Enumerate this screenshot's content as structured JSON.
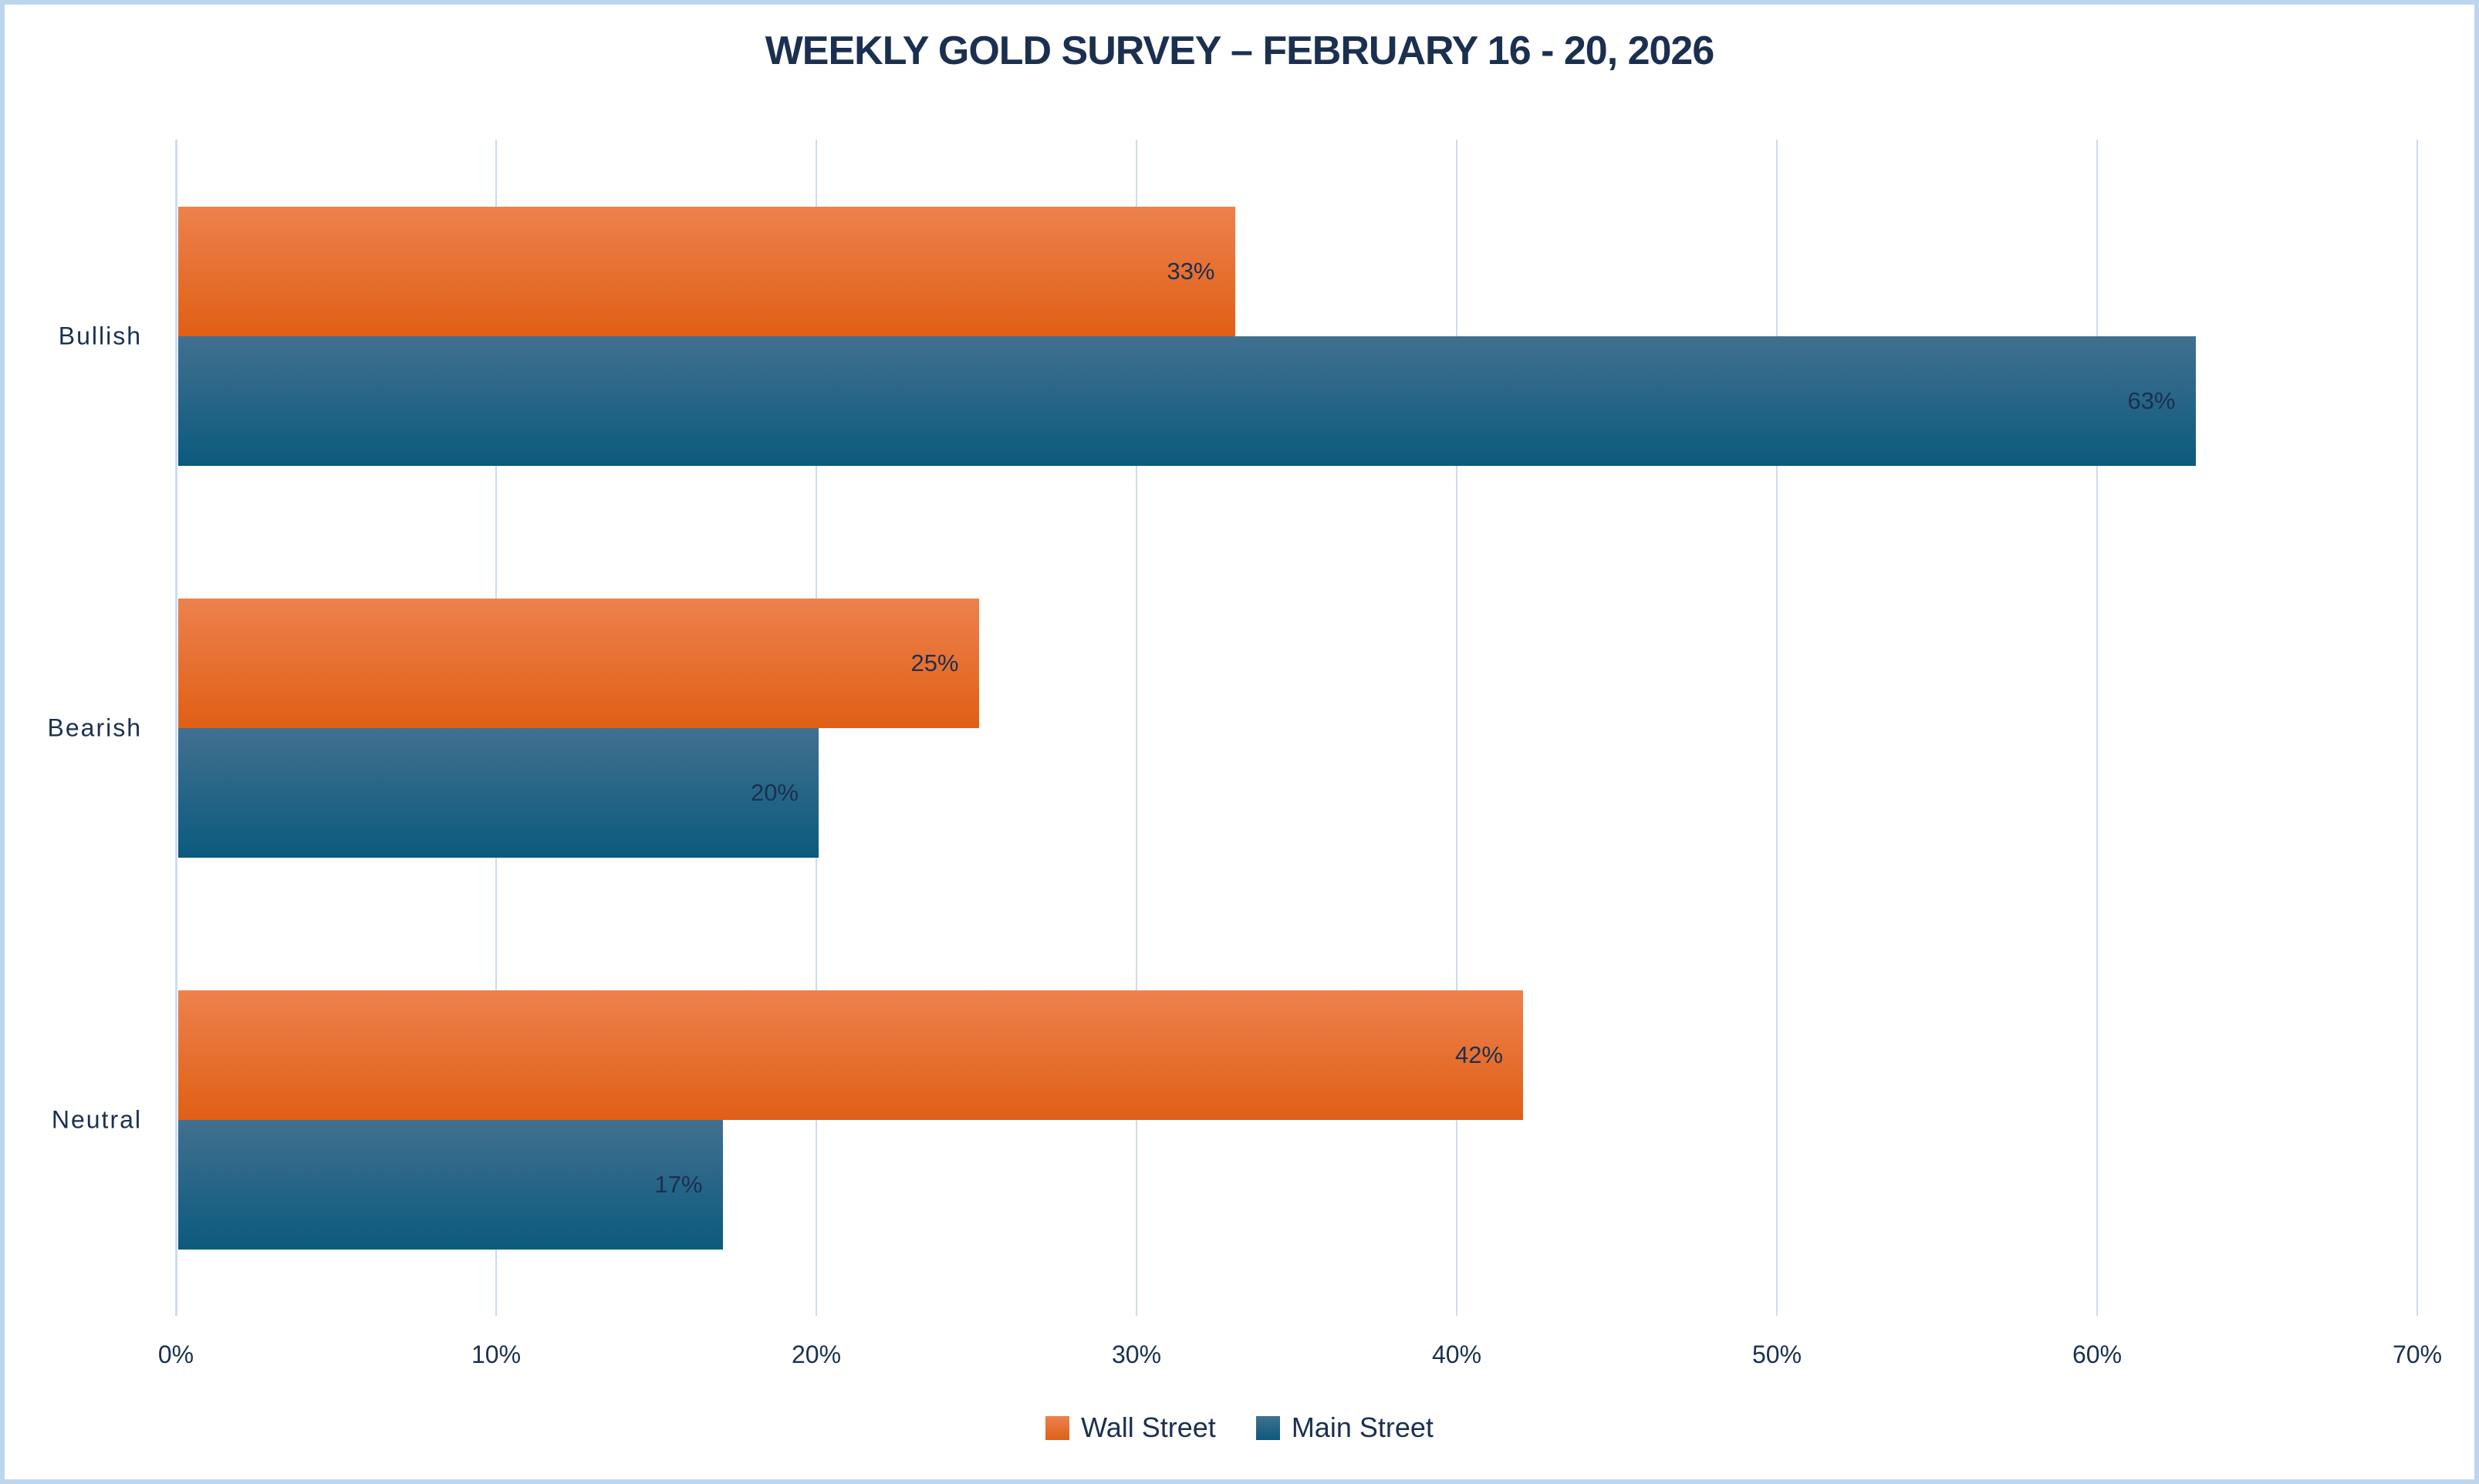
{
  "chart_data": {
    "type": "bar",
    "orientation": "horizontal",
    "title": "WEEKLY GOLD SURVEY – FEBRUARY 16 - 20, 2026",
    "categories": [
      "Bullish",
      "Bearish",
      "Neutral"
    ],
    "series": [
      {
        "name": "Wall Street",
        "values": [
          33,
          25,
          42
        ]
      },
      {
        "name": "Main Street",
        "values": [
          63,
          20,
          17
        ]
      }
    ],
    "data_labels": [
      [
        "33%",
        "25%",
        "42%"
      ],
      [
        "63%",
        "20%",
        "17%"
      ]
    ],
    "value_suffix": "%",
    "xlim": [
      0,
      70
    ],
    "x_ticks": [
      "0%",
      "10%",
      "20%",
      "30%",
      "40%",
      "50%",
      "60%",
      "70%"
    ],
    "grid": true,
    "legend_position": "bottom"
  },
  "colors": {
    "background": "#ffffff",
    "frame_border": "#bdd6ee",
    "gridline": "#c9ddf2",
    "text": "#1b3050",
    "wall_street_top": "#ed814d",
    "wall_street_bottom": "#e05f15",
    "main_street_top": "#41708f",
    "main_street_bottom": "#0b5a7e"
  }
}
